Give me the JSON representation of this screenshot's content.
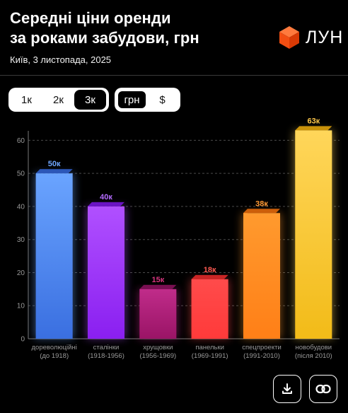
{
  "header": {
    "title_line1": "Середні ціни оренди",
    "title_line2": "за роками забудови, грн",
    "subtitle": "Київ, 3 листопада, 2025"
  },
  "logo": {
    "text": "ЛУН",
    "icon": "cube-logo-icon",
    "color": "#ff5a1f"
  },
  "controls": {
    "room_options": [
      "1к",
      "2к",
      "3к"
    ],
    "room_selected": "3к",
    "currency_options": [
      "грн",
      "$"
    ],
    "currency_selected": "грн"
  },
  "actions": {
    "download_icon": "download-icon",
    "link_icon": "link-icon"
  },
  "chart_data": {
    "type": "bar",
    "title": "Середні ціни оренди за роками забудови, грн",
    "ylim": [
      0,
      65
    ],
    "yticks": [
      0,
      10,
      20,
      30,
      40,
      50,
      60
    ],
    "grid": true,
    "categories": [
      {
        "line1": "дореволюційні",
        "line2": "(до 1918)"
      },
      {
        "line1": "сталінки",
        "line2": "(1918-1956)"
      },
      {
        "line1": "хрущовки",
        "line2": "(1956-1969)"
      },
      {
        "line1": "панельки",
        "line2": "(1969-1991)"
      },
      {
        "line1": "спецпроекти",
        "line2": "(1991-2010)"
      },
      {
        "line1": "новобудови",
        "line2": "(після 2010)"
      }
    ],
    "values": [
      50,
      40,
      15,
      18,
      38,
      63
    ],
    "value_labels": [
      "50к",
      "40к",
      "15к",
      "18к",
      "38к",
      "63к"
    ],
    "colors": [
      {
        "top": "#6aa4ff",
        "bottom": "#3a6fe0",
        "side": "#2c57b8",
        "label": "#6fa6ff"
      },
      {
        "top": "#b050ff",
        "bottom": "#8a1ff0",
        "side": "#6a14c4",
        "label": "#b56cff"
      },
      {
        "top": "#c02c8a",
        "bottom": "#9a1466",
        "side": "#7a0f52",
        "label": "#d8357f"
      },
      {
        "top": "#ff4b4b",
        "bottom": "#ff3a3a",
        "side": "#c92525",
        "label": "#ff5a52"
      },
      {
        "top": "#ff9a2e",
        "bottom": "#ff7f17",
        "side": "#cc5f0a",
        "label": "#ff9a35"
      },
      {
        "top": "#ffd65a",
        "bottom": "#f2bb18",
        "side": "#c9920a",
        "label": "#ffc84a"
      }
    ]
  }
}
